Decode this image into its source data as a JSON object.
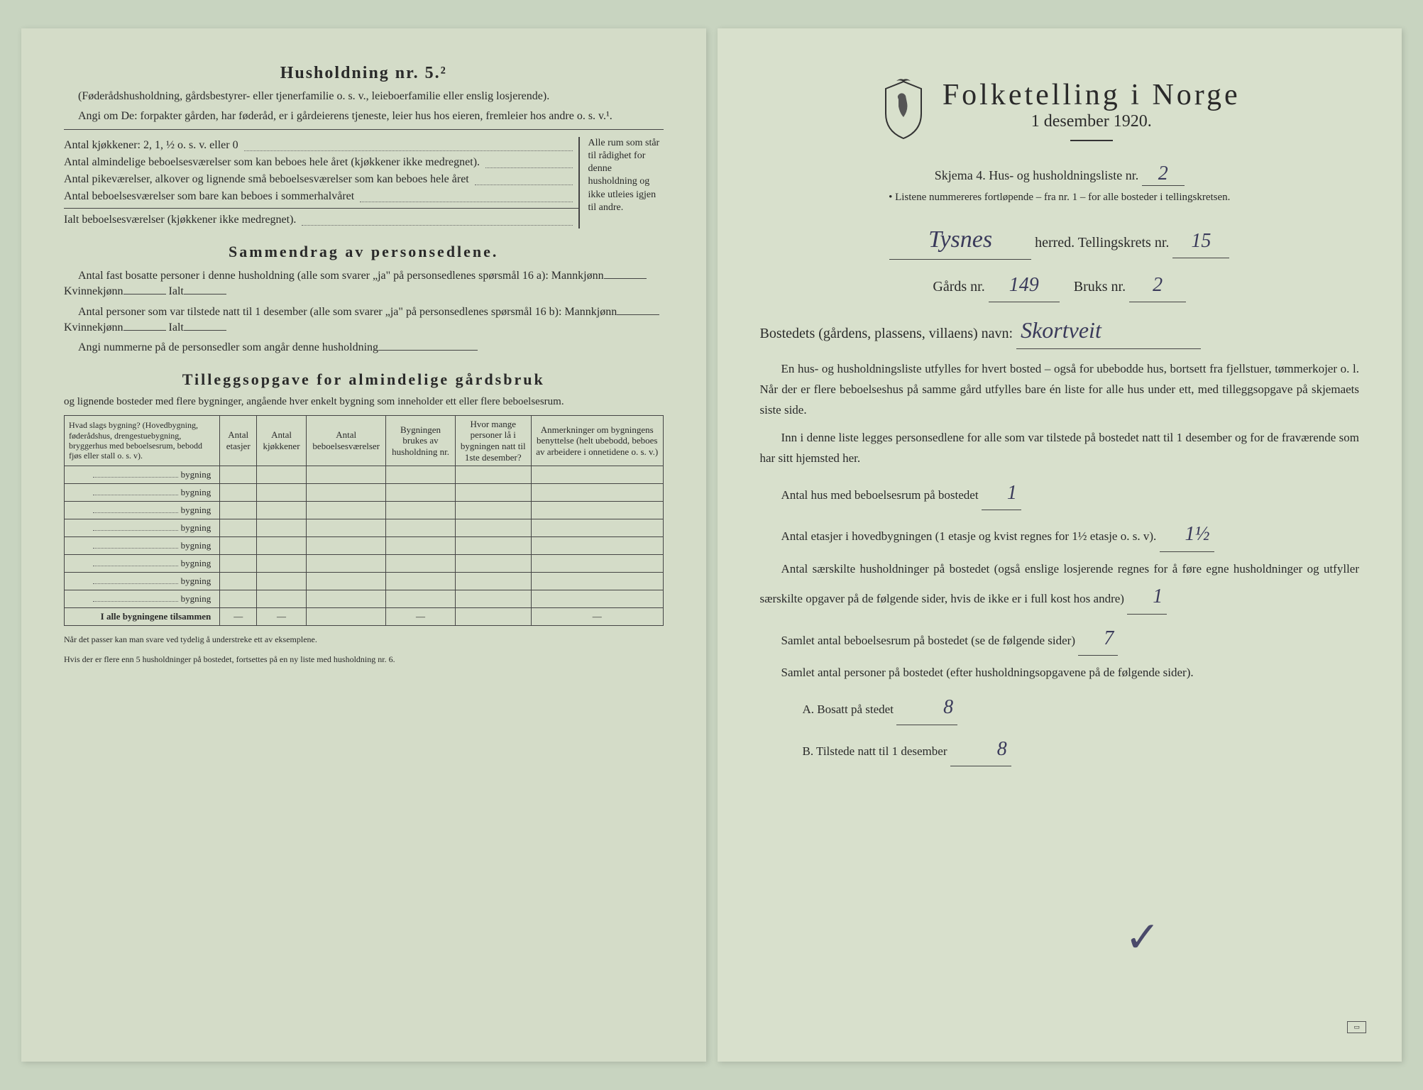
{
  "left_page": {
    "heading": "Husholdning nr. 5.²",
    "intro1": "(Føderådshusholdning, gårdsbestyrer- eller tjenerfamilie o. s. v., leieboerfamilie eller enslig losjerende).",
    "intro2": "Angi om De: forpakter gården, har føderåd, er i gårdeierens tjeneste, leier hus hos eieren, fremleier hos andre o. s. v.¹.",
    "kitchen_line": "Antal kjøkkener: 2, 1, ½ o. s. v. eller 0",
    "rooms1": "Antal almindelige beboelsesværelser som kan beboes hele året (kjøkkener ikke medregnet).",
    "rooms2": "Antal pikeværelser, alkover og lignende små beboelsesværelser som kan beboes hele året",
    "rooms3": "Antal beboelsesværelser som bare kan beboes i sommerhalvåret",
    "rooms_total": "Ialt beboelsesværelser (kjøkkener ikke medregnet).",
    "brace_text": "Alle rum som står til rådighet for denne husholdning og ikke utleies igjen til andre.",
    "summary_title": "Sammendrag av personsedlene.",
    "summary1": "Antal fast bosatte personer i denne husholdning (alle som svarer „ja\" på personsedlenes spørsmål 16 a): Mannkjønn",
    "summary1b": "Kvinnekjønn",
    "summary1c": "Ialt",
    "summary2": "Antal personer som var tilstede natt til 1 desember (alle som svarer „ja\" på personsedlenes spørsmål 16 b): Mannkjønn",
    "summary3": "Angi nummerne på de personsedler som angår denne husholdning",
    "tillegg_title": "Tilleggsopgave for almindelige gårdsbruk",
    "tillegg_sub": "og lignende bosteder med flere bygninger, angående hver enkelt bygning som inneholder ett eller flere beboelsesrum.",
    "table": {
      "headers": [
        "Hvad slags bygning?\n(Hovedbygning, føderådshus, drengestuebygning, bryggerhus med beboelsesrum, bebodd fjøs eller stall o. s. v).",
        "Antal etasjer",
        "Antal kjøkkener",
        "Antal beboelsesværelser",
        "Bygningen brukes av husholdning nr.",
        "Hvor mange personer lå i bygningen natt til 1ste desember?",
        "Anmerkninger om bygningens benyttelse (helt ubebodd, beboes av arbeidere i onnetidene o. s. v.)"
      ],
      "row_label": "bygning",
      "row_count": 8,
      "total_label": "I alle bygningene tilsammen"
    },
    "footnote1": "Når det passer kan man svare ved tydelig å understreke ett av eksemplene.",
    "footnote2": "Hvis der er flere enn 5 husholdninger på bostedet, fortsettes på en ny liste med husholdning nr. 6."
  },
  "right_page": {
    "main_title": "Folketelling i Norge",
    "date": "1 desember 1920.",
    "skjema_label": "Skjema 4.  Hus- og husholdningsliste nr.",
    "skjema_nr": "2",
    "note": "Listene nummereres fortløpende – fra nr. 1 – for alle bosteder i tellingskretsen.",
    "herred_value": "Tysnes",
    "herred_label": "herred.  Tellingskrets nr.",
    "krets_nr": "15",
    "gards_label": "Gårds nr.",
    "gards_nr": "149",
    "bruks_label": "Bruks nr.",
    "bruks_nr": "2",
    "bosted_label": "Bostedets (gårdens, plassens, villaens) navn:",
    "bosted_value": "Skortveit",
    "para1": "En hus- og husholdningsliste utfylles for hvert bosted – også for ubebodde hus, bortsett fra fjellstuer, tømmerkojer o. l.  Når der er flere beboelseshus på samme gård utfylles bare én liste for alle hus under ett, med tilleggsopgave på skjemaets siste side.",
    "para2": "Inn i denne liste legges personsedlene for alle som var tilstede på bostedet natt til 1 desember og for de fraværende som har sitt hjemsted her.",
    "q1": "Antal hus med beboelsesrum på bostedet",
    "q1_val": "1",
    "q2": "Antal etasjer i hovedbygningen (1 etasje og kvist regnes for 1½ etasje o. s. v).",
    "q2_val": "1½",
    "q3": "Antal særskilte husholdninger på bostedet (også enslige losjerende regnes for å føre egne husholdninger og utfyller særskilte opgaver på de følgende sider, hvis de ikke er i full kost hos andre)",
    "q3_val": "1",
    "q4": "Samlet antal beboelsesrum på bostedet (se de følgende sider)",
    "q4_val": "7",
    "q5": "Samlet antal personer på bostedet (efter husholdningsopgavene på de følgende sider).",
    "q5a_label": "A.  Bosatt på stedet",
    "q5a_val": "8",
    "q5b_label": "B.  Tilstede natt til 1 desember",
    "q5b_val": "8"
  },
  "colors": {
    "paper": "#d4dcc8",
    "paper_right": "#d8e0cc",
    "ink": "#2a2a2a",
    "pen": "#3a3a5a"
  }
}
